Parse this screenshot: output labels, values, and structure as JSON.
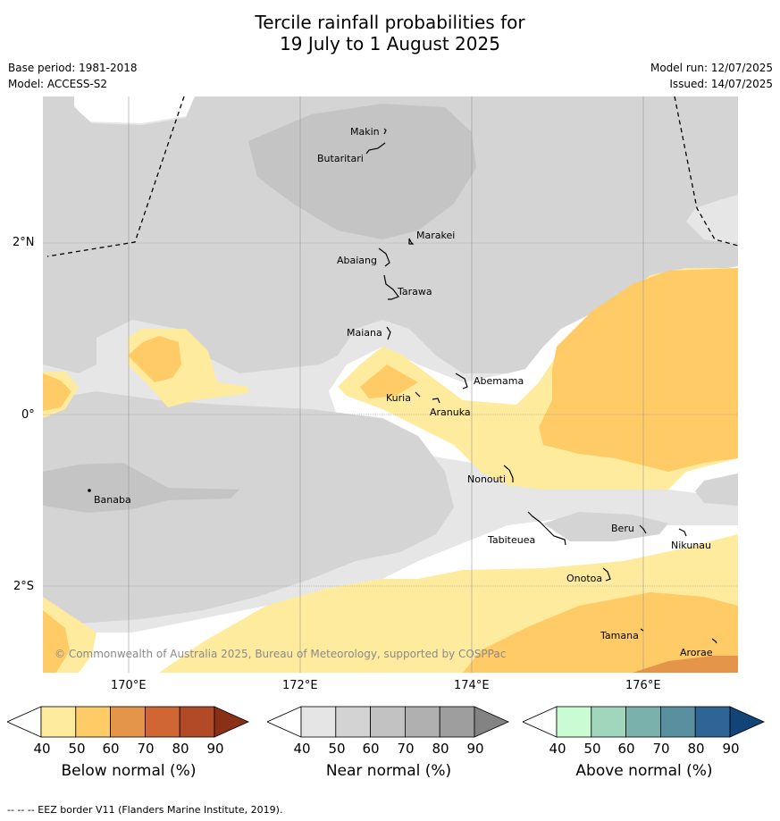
{
  "title": {
    "line1": "Tercile rainfall probabilities for",
    "line2": "19 July to 1 August 2025"
  },
  "meta": {
    "base_period": "Base period: 1981-2018",
    "model": "Model: ACCESS-S2",
    "model_run": "Model run: 12/07/2025",
    "issued": "Issued: 14/07/2025"
  },
  "map": {
    "copyright": "© Commonwealth of Australia 2025, Bureau of Meteorology, supported by COSPPac",
    "lat_labels": [
      "2°N",
      "0°",
      "2°S"
    ],
    "lon_labels": [
      "170°E",
      "172°E",
      "174°E",
      "176°E"
    ],
    "places": [
      {
        "name": "Makin"
      },
      {
        "name": "Butaritari"
      },
      {
        "name": "Marakei"
      },
      {
        "name": "Abaiang"
      },
      {
        "name": "Tarawa"
      },
      {
        "name": "Maiana"
      },
      {
        "name": "Abemama"
      },
      {
        "name": "Kuria"
      },
      {
        "name": "Aranuka"
      },
      {
        "name": "Banaba"
      },
      {
        "name": "Nonouti"
      },
      {
        "name": "Beru"
      },
      {
        "name": "Tabiteuea"
      },
      {
        "name": "Nikunau"
      },
      {
        "name": "Onotoa"
      },
      {
        "name": "Tamana"
      },
      {
        "name": "Arorae"
      }
    ]
  },
  "colorbars": {
    "below": {
      "title": "Below normal (%)",
      "ticks": [
        "40",
        "50",
        "60",
        "70",
        "80",
        "90"
      ],
      "colors": [
        "#ffffff",
        "#ffeb9e",
        "#ffcb66",
        "#e49549",
        "#cf6633",
        "#b24a27",
        "#8a3016"
      ]
    },
    "near": {
      "title": "Near normal (%)",
      "ticks": [
        "40",
        "50",
        "60",
        "70",
        "80",
        "90"
      ],
      "colors": [
        "#ffffff",
        "#e5e5e5",
        "#d3d3d3",
        "#c2c2c2",
        "#b0b0b0",
        "#9e9e9e",
        "#838383"
      ]
    },
    "above": {
      "title": "Above normal (%)",
      "ticks": [
        "40",
        "50",
        "60",
        "70",
        "80",
        "90"
      ],
      "colors": [
        "#ffffff",
        "#c9fcd2",
        "#a0d6bc",
        "#7ab1ad",
        "#5a8fa0",
        "#2f6497",
        "#124477"
      ]
    }
  },
  "footer": "--  --  -- EEZ border V11 (Flanders Marine Institute, 2019)."
}
